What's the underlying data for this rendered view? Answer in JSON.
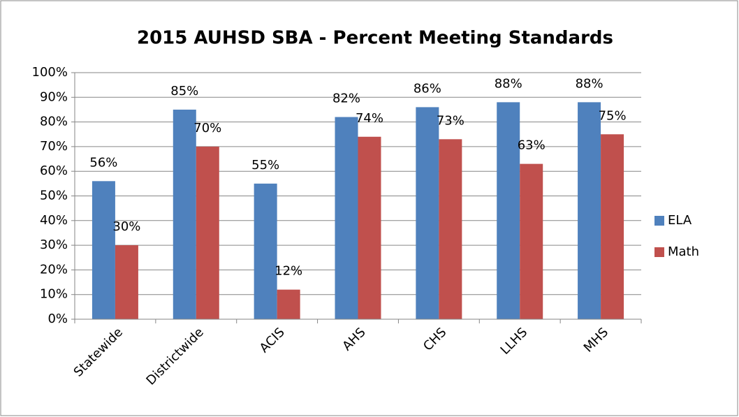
{
  "chart_data": {
    "type": "bar",
    "title": "2015 AUHSD SBA - Percent Meeting Standards",
    "categories": [
      "Statewide",
      "Districtwide",
      "ACIS",
      "AHS",
      "CHS",
      "LLHS",
      "MHS"
    ],
    "series": [
      {
        "name": "ELA",
        "color": "#4f81bd",
        "values": [
          56,
          85,
          55,
          82,
          86,
          88,
          88
        ],
        "value_labels": [
          "56%",
          "85%",
          "55%",
          "82%",
          "86%",
          "88%",
          "88%"
        ]
      },
      {
        "name": "Math",
        "color": "#c0504d",
        "values": [
          30,
          70,
          12,
          74,
          73,
          63,
          75
        ],
        "value_labels": [
          "30%",
          "70%",
          "12%",
          "74%",
          "73%",
          "63%",
          "75%"
        ]
      }
    ],
    "ylim": [
      0,
      100
    ],
    "yticks": [
      {
        "value": 0,
        "label": "0%"
      },
      {
        "value": 10,
        "label": "10%"
      },
      {
        "value": 20,
        "label": "20%"
      },
      {
        "value": 30,
        "label": "30%"
      },
      {
        "value": 40,
        "label": "40%"
      },
      {
        "value": 50,
        "label": "50%"
      },
      {
        "value": 60,
        "label": "60%"
      },
      {
        "value": 70,
        "label": "70%"
      },
      {
        "value": 80,
        "label": "80%"
      },
      {
        "value": 90,
        "label": "90%"
      },
      {
        "value": 100,
        "label": "100%"
      }
    ],
    "grid": true,
    "legend": "right"
  }
}
